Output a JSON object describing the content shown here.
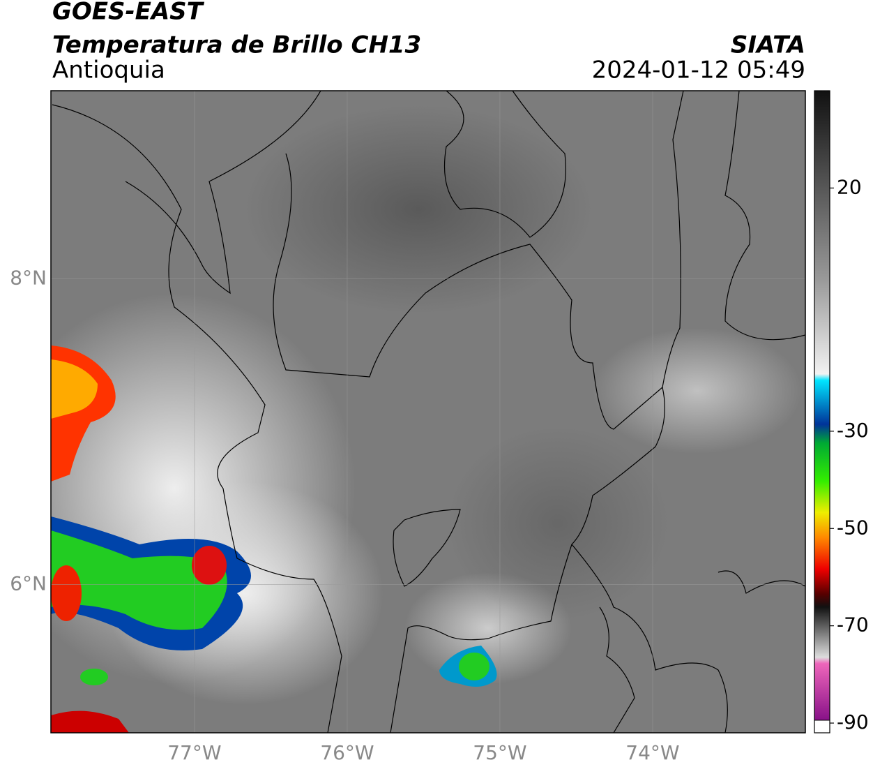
{
  "header": {
    "title": "GOES-EAST",
    "subtitle": "Temperatura de Brillo CH13",
    "region": "Antioquia",
    "source": "SIATA",
    "datetime": "2024-01-12 05:49"
  },
  "map": {
    "xlim": [
      -77.94,
      -73.0
    ],
    "ylim": [
      5.03,
      9.23
    ],
    "xticks": [
      {
        "value": -77,
        "label": "77°W"
      },
      {
        "value": -76,
        "label": "76°W"
      },
      {
        "value": -75,
        "label": "75°W"
      },
      {
        "value": -74,
        "label": "74°W"
      }
    ],
    "yticks": [
      {
        "value": 6,
        "label": "6°N"
      },
      {
        "value": 8,
        "label": "8°N"
      }
    ]
  },
  "colorbar": {
    "lim": [
      -92,
      40
    ],
    "ticks": [
      20,
      -30,
      -50,
      -70,
      -90
    ]
  }
}
